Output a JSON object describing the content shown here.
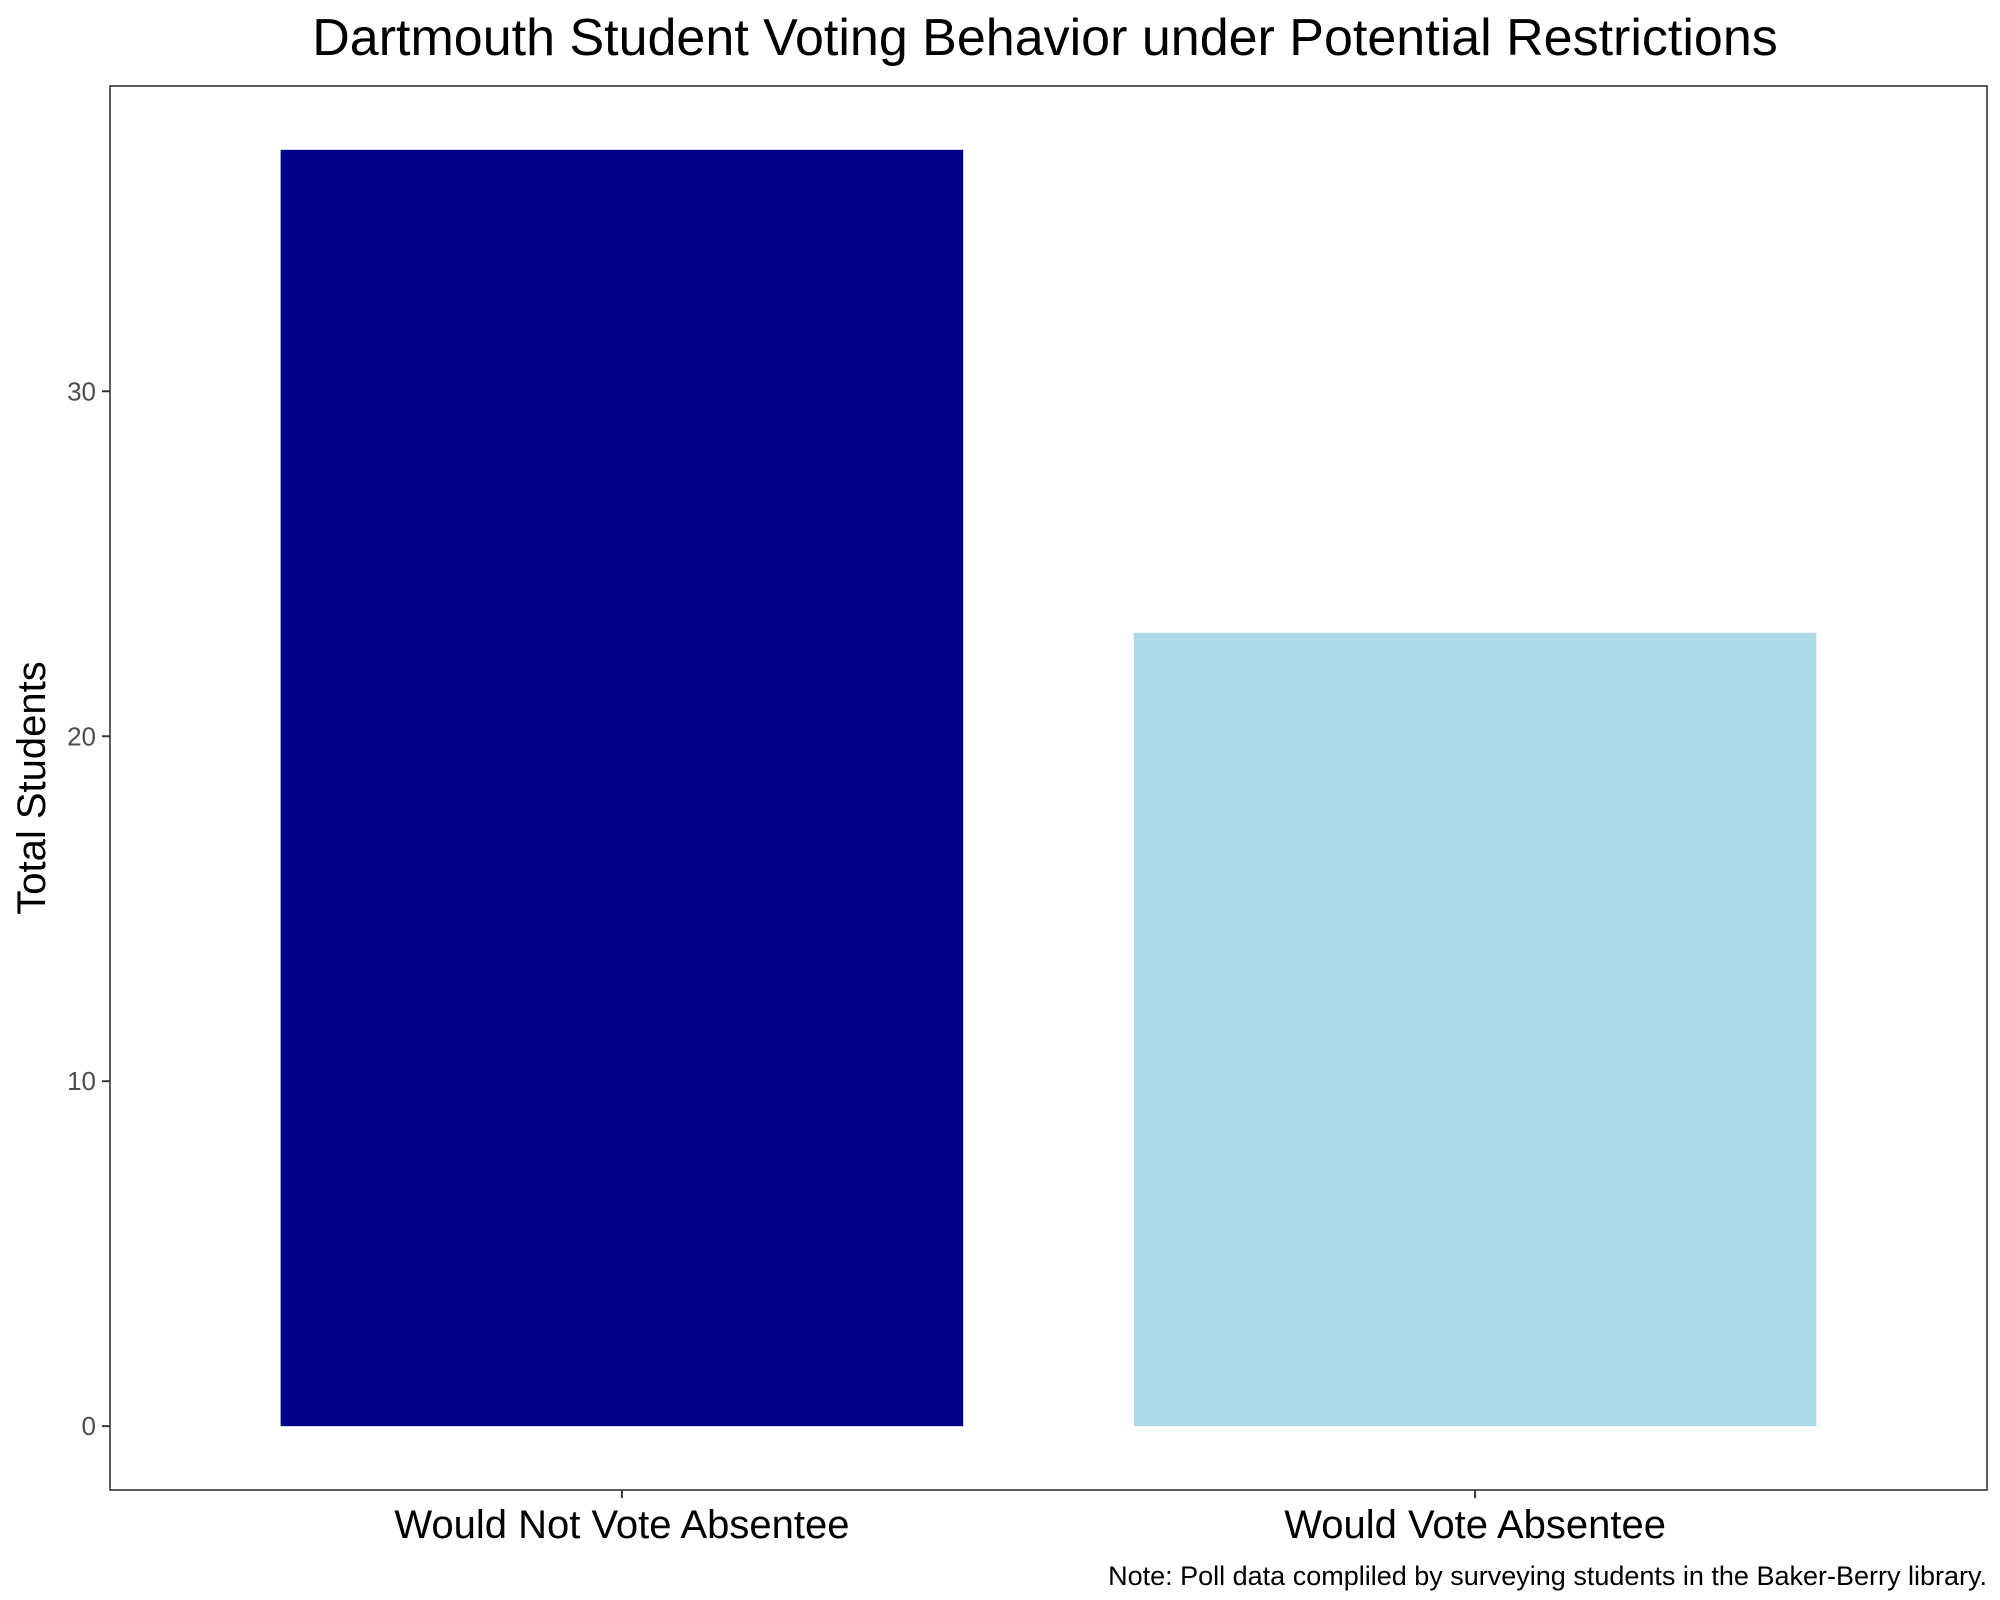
{
  "chart_data": {
    "type": "bar",
    "title": "Dartmouth Student Voting Behavior under Potential Restrictions",
    "xlabel": "",
    "ylabel": "Total Students",
    "categories": [
      "Would Not Vote Absentee",
      "Would Vote Absentee"
    ],
    "values": [
      37,
      23
    ],
    "colors": [
      "#00008b",
      "#add8e6"
    ],
    "yticks": [
      0,
      10,
      20,
      30
    ],
    "ylim": [
      -1.85,
      38.85
    ],
    "grid": false,
    "legend": "none",
    "caption": "Note: Poll data compliled by surveying students in the Baker-Berry library."
  }
}
